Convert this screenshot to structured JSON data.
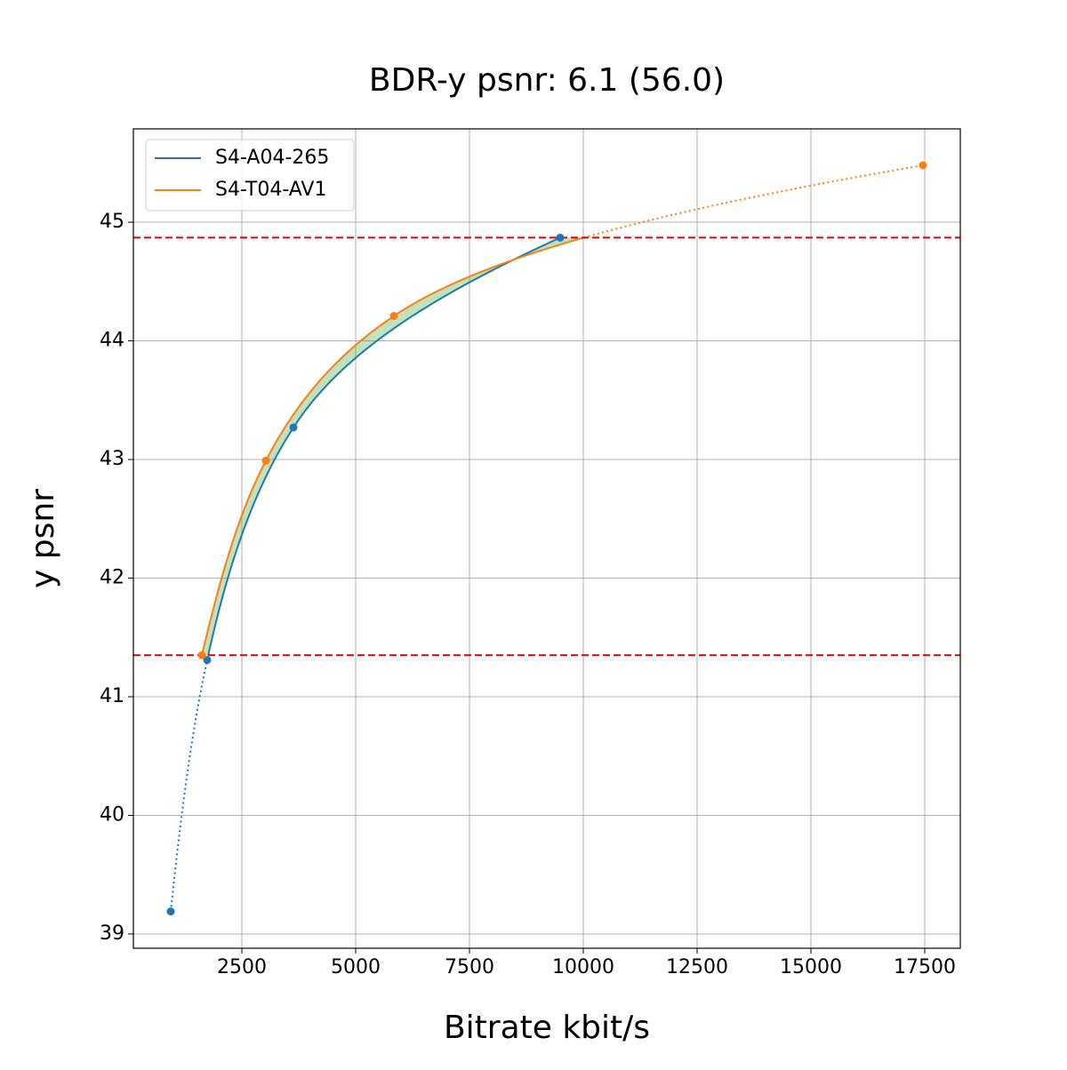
{
  "chart_data": {
    "type": "line",
    "title": "BDR-y psnr: 6.1 (56.0)",
    "x_label": "Bitrate kbit/s",
    "y_label": "y psnr",
    "series": [
      {
        "name": "S4-A04-265",
        "color": "#1f77b4",
        "x": [
          937,
          1738,
          3633,
          9492
        ],
        "values": [
          39.19,
          41.31,
          43.27,
          44.87
        ]
      },
      {
        "name": "S4-T04-AV1",
        "color": "#ff7f0e",
        "x": [
          1621,
          3027,
          5840,
          17461
        ],
        "values": [
          41.35,
          42.99,
          44.21,
          45.48
        ]
      }
    ],
    "hlines": [
      41.35,
      44.87
    ],
    "hline_color": "#e00000",
    "fill_color": "#2ca02c",
    "xlim": [
      117,
      18281
    ],
    "xticks": [
      2500,
      5000,
      7500,
      10000,
      12500,
      15000,
      17500
    ],
    "ylim": [
      38.88,
      45.787
    ],
    "yticks": [
      39,
      40,
      41,
      42,
      43,
      44,
      45
    ],
    "grid": true,
    "legend": "upper left"
  }
}
